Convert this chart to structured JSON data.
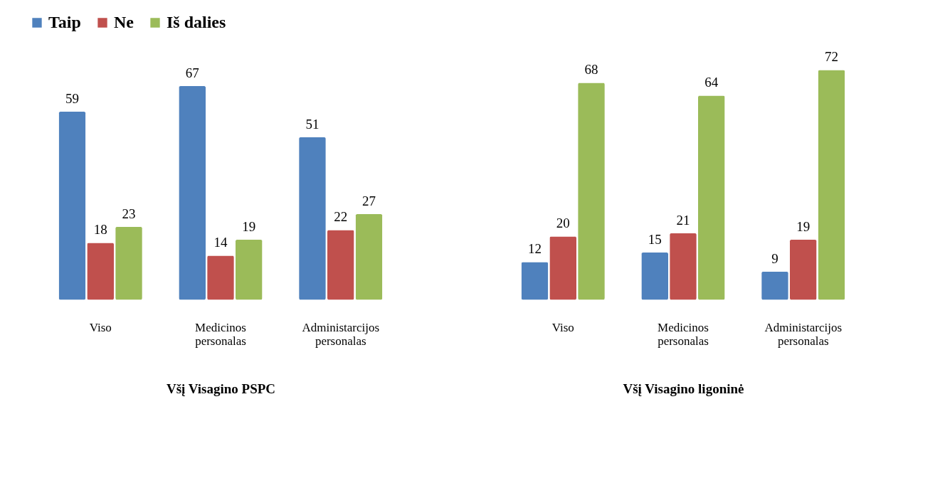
{
  "chart_data": [
    {
      "type": "bar",
      "xlabel": "Všį Visagino PSPC",
      "categories": [
        "Viso",
        "Medicinos personalas",
        "Administarcijos personalas"
      ],
      "series": [
        {
          "name": "Taip",
          "color": "#4f81bd",
          "values": [
            59,
            67,
            51
          ]
        },
        {
          "name": "Ne",
          "color": "#c0504d",
          "values": [
            18,
            14,
            22
          ]
        },
        {
          "name": "Iš dalies",
          "color": "#9bbb59",
          "values": [
            23,
            19,
            27
          ]
        }
      ],
      "data_labels": true,
      "legend": "top"
    },
    {
      "type": "bar",
      "xlabel": "Všį Visagino ligoninė",
      "categories": [
        "Viso",
        "Medicinos personalas",
        "Administarcijos personalas"
      ],
      "series": [
        {
          "name": "Taip",
          "color": "#4f81bd",
          "values": [
            12,
            15,
            9
          ]
        },
        {
          "name": "Ne",
          "color": "#c0504d",
          "values": [
            20,
            21,
            19
          ]
        },
        {
          "name": "Iš dalies",
          "color": "#9bbb59",
          "values": [
            68,
            64,
            72
          ]
        }
      ],
      "data_labels": true,
      "legend": "top"
    }
  ]
}
